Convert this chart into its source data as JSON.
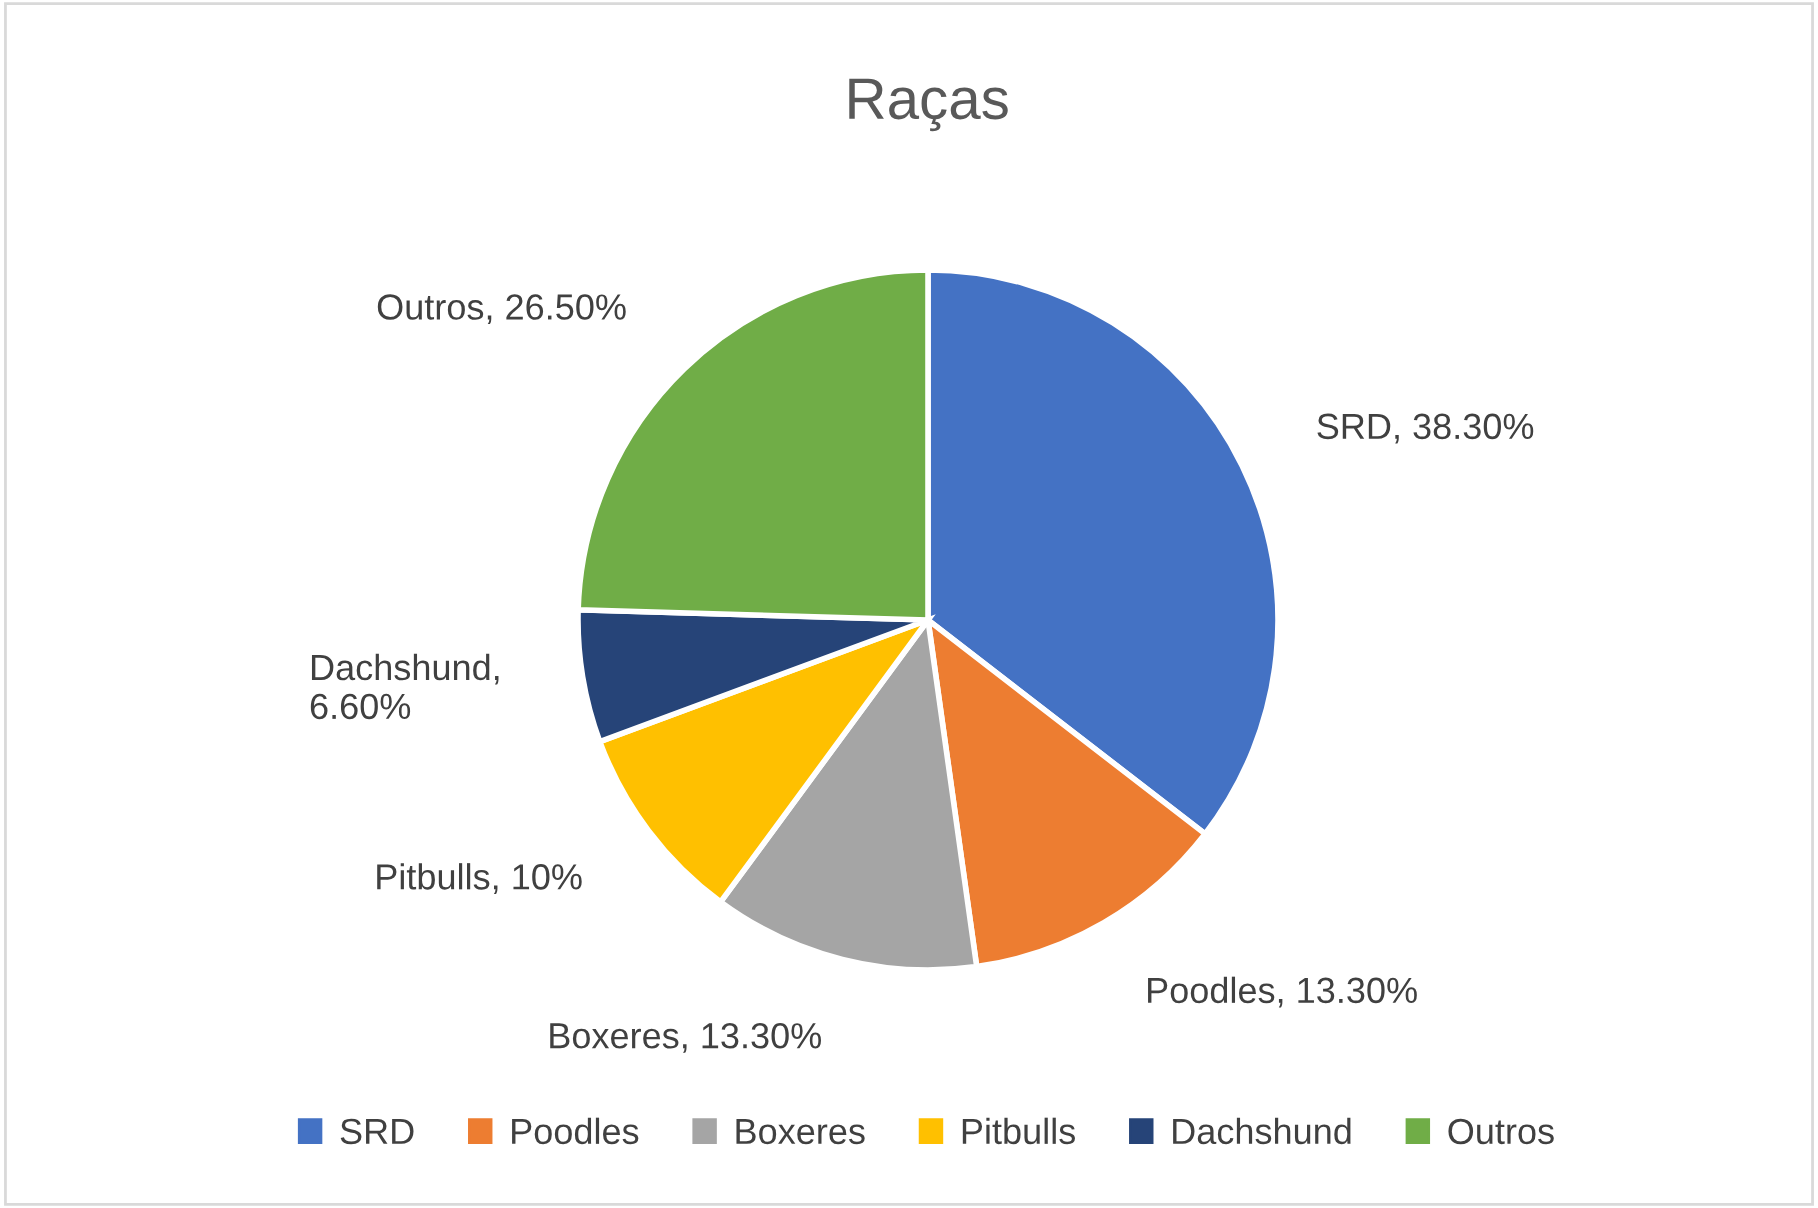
{
  "chart_data": {
    "type": "pie",
    "title": "Raças",
    "categories": [
      "SRD",
      "Poodles",
      "Boxeres",
      "Pitbulls",
      "Dachshund",
      "Outros"
    ],
    "values": [
      38.3,
      13.3,
      13.3,
      10,
      6.6,
      26.5
    ],
    "value_labels": [
      "SRD, 38.30%",
      "Poodles, 13.30%",
      "Boxeres, 13.30%",
      "Pitbulls, 10%",
      "Dachshund, 6.60%",
      "Outros, 26.50%"
    ],
    "colors": [
      "#4472c4",
      "#ed7d31",
      "#a5a5a5",
      "#ffc000",
      "#264478",
      "#70ad47"
    ],
    "legend": "bottom"
  }
}
